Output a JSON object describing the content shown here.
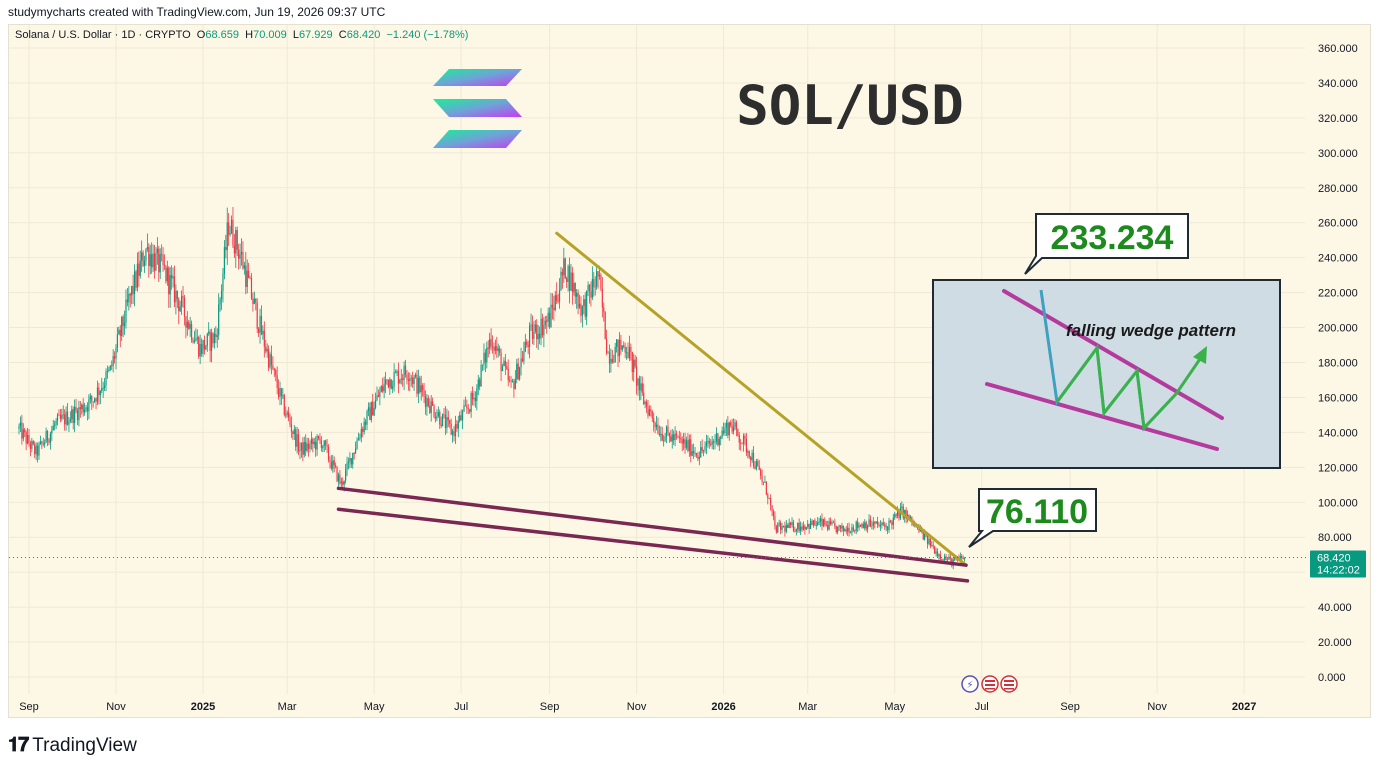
{
  "header": {
    "attribution": "studymycharts created with TradingView.com, Jun 19, 2026 09:37 UTC"
  },
  "legend": {
    "symbol": "Solana / U.S. Dollar · 1D · CRYPTO",
    "open_label": "O",
    "open": "68.659",
    "high_label": "H",
    "high": "70.009",
    "low_label": "L",
    "low": "67.929",
    "close_label": "C",
    "close": "68.420",
    "change": "−1.240 (−1.78%)"
  },
  "footer": {
    "brand": "TradingView"
  },
  "colors": {
    "background": "#fdf8e6",
    "up": "#089981",
    "down": "#f23645",
    "resistance": "#b5a227",
    "support": "#7a2752",
    "price_label": "#089981",
    "target": "#1d8a1d"
  },
  "chart_data": {
    "type": "candlestick",
    "title": "SOL/USD",
    "ylim": [
      0,
      360
    ],
    "y_ticks": [
      "360.000",
      "340.000",
      "320.000",
      "300.000",
      "280.000",
      "260.000",
      "240.000",
      "220.000",
      "200.000",
      "180.000",
      "160.000",
      "140.000",
      "120.000",
      "100.000",
      "80.000",
      "60.000",
      "40.000",
      "20.000",
      "0.000"
    ],
    "x_ticks": [
      {
        "label": "Sep",
        "date": "2024-09-01",
        "bold": false
      },
      {
        "label": "Nov",
        "date": "2024-11-01",
        "bold": false
      },
      {
        "label": "2025",
        "date": "2025-01-01",
        "bold": true
      },
      {
        "label": "Mar",
        "date": "2025-03-01",
        "bold": false
      },
      {
        "label": "May",
        "date": "2025-05-01",
        "bold": false
      },
      {
        "label": "Jul",
        "date": "2025-07-01",
        "bold": false
      },
      {
        "label": "Sep",
        "date": "2025-09-01",
        "bold": false
      },
      {
        "label": "Nov",
        "date": "2025-11-01",
        "bold": false
      },
      {
        "label": "2026",
        "date": "2026-01-01",
        "bold": true
      },
      {
        "label": "Mar",
        "date": "2026-03-01",
        "bold": false
      },
      {
        "label": "May",
        "date": "2026-05-01",
        "bold": false
      },
      {
        "label": "Jul",
        "date": "2026-07-01",
        "bold": false
      },
      {
        "label": "Sep",
        "date": "2026-09-01",
        "bold": false
      },
      {
        "label": "Nov",
        "date": "2026-11-01",
        "bold": false
      },
      {
        "label": "2027",
        "date": "2027-01-01",
        "bold": true
      }
    ],
    "price_path": [
      [
        "2024-08-25",
        142
      ],
      [
        "2024-09-06",
        128
      ],
      [
        "2024-09-20",
        145
      ],
      [
        "2024-10-01",
        150
      ],
      [
        "2024-10-15",
        158
      ],
      [
        "2024-10-28",
        175
      ],
      [
        "2024-11-10",
        215
      ],
      [
        "2024-11-22",
        245
      ],
      [
        "2024-12-05",
        232
      ],
      [
        "2024-12-18",
        210
      ],
      [
        "2024-12-30",
        188
      ],
      [
        "2025-01-10",
        195
      ],
      [
        "2025-01-19",
        260
      ],
      [
        "2025-01-28",
        240
      ],
      [
        "2025-02-10",
        200
      ],
      [
        "2025-02-25",
        158
      ],
      [
        "2025-03-10",
        130
      ],
      [
        "2025-03-25",
        135
      ],
      [
        "2025-04-08",
        110
      ],
      [
        "2025-04-22",
        142
      ],
      [
        "2025-05-10",
        170
      ],
      [
        "2025-05-25",
        175
      ],
      [
        "2025-06-10",
        155
      ],
      [
        "2025-06-25",
        140
      ],
      [
        "2025-07-10",
        160
      ],
      [
        "2025-07-22",
        195
      ],
      [
        "2025-08-05",
        165
      ],
      [
        "2025-08-18",
        195
      ],
      [
        "2025-09-01",
        205
      ],
      [
        "2025-09-12",
        235
      ],
      [
        "2025-09-24",
        210
      ],
      [
        "2025-10-05",
        230
      ],
      [
        "2025-10-12",
        185
      ],
      [
        "2025-10-25",
        190
      ],
      [
        "2025-11-05",
        160
      ],
      [
        "2025-11-18",
        140
      ],
      [
        "2025-12-01",
        135
      ],
      [
        "2025-12-15",
        128
      ],
      [
        "2025-12-25",
        135
      ],
      [
        "2026-01-06",
        145
      ],
      [
        "2026-01-20",
        128
      ],
      [
        "2026-02-01",
        105
      ],
      [
        "2026-02-06",
        85
      ],
      [
        "2026-02-20",
        86
      ],
      [
        "2026-03-10",
        88
      ],
      [
        "2026-03-25",
        84
      ],
      [
        "2026-04-10",
        88
      ],
      [
        "2026-04-25",
        86
      ],
      [
        "2026-05-06",
        95
      ],
      [
        "2026-05-20",
        82
      ],
      [
        "2026-06-01",
        70
      ],
      [
        "2026-06-10",
        66
      ],
      [
        "2026-06-19",
        68.42
      ]
    ],
    "resistance_line": {
      "start": [
        "2025-09-06",
        254
      ],
      "end": [
        "2026-06-20",
        64
      ]
    },
    "support_lines": [
      {
        "start": [
          "2025-04-06",
          108
        ],
        "end": [
          "2026-06-20",
          64
        ]
      },
      {
        "start": [
          "2025-04-06",
          96
        ],
        "end": [
          "2026-06-21",
          55
        ]
      }
    ],
    "current_price": {
      "value": 68.42,
      "label": "68.420",
      "countdown": "14:22:02"
    },
    "annotations": {
      "target_label": "233.234",
      "breakout_label": "76.110",
      "inset_caption": "falling wedge pattern"
    }
  }
}
